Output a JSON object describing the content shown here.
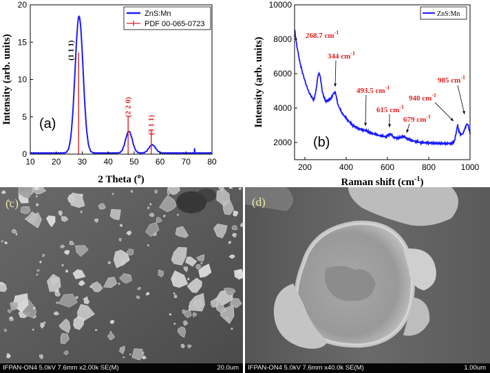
{
  "chart_data": [
    {
      "type": "line",
      "panel_label": "(a)",
      "xlabel": "2 Theta (°)",
      "xlabel_main": "2 Theta (",
      "xlabel_sup": "o",
      "xlabel_end": ")",
      "ylabel": "Intensity (arb. units)",
      "xlim": [
        10,
        80
      ],
      "ylim": [
        0,
        20
      ],
      "xticks": [
        10,
        20,
        30,
        40,
        50,
        60,
        70,
        80
      ],
      "yticks": [
        0,
        5,
        10,
        15,
        20
      ],
      "legend": {
        "position": "top-right",
        "entries": [
          "ZnS:Mn",
          "PDF 00-065-0723"
        ]
      },
      "series": [
        {
          "name": "ZnS:Mn",
          "color": "#1a1aff",
          "peaks": [
            {
              "center": 28.8,
              "height": 18.3,
              "width": 1.55
            },
            {
              "center": 48.0,
              "height": 2.9,
              "width": 1.3
            },
            {
              "center": 57.0,
              "height": 1.1,
              "width": 1.3
            }
          ],
          "baseline": 0.15,
          "spikes": [
            {
              "x": 73.3,
              "height": 0.6
            }
          ]
        },
        {
          "name": "PDF 00-065-0723",
          "color": "#e02020",
          "sticks": [
            {
              "x": 28.6,
              "height": 13.6
            },
            {
              "x": 47.7,
              "height": 5.0
            },
            {
              "x": 56.6,
              "height": 3.3
            }
          ]
        }
      ],
      "annotations": [
        {
          "text": "(1 1 1)",
          "x": 26.6,
          "y": 13.9
        },
        {
          "text": "(2 2 0)",
          "x": 48.6,
          "y": 6.3
        },
        {
          "text": "(3 1 1)",
          "x": 57.4,
          "y": 3.9
        }
      ]
    },
    {
      "type": "line",
      "panel_label": "(b)",
      "xlabel": "Raman shift (cm⁻¹)",
      "xlabel_main": "Raman shift (cm",
      "xlabel_sup": "-1",
      "xlabel_end": ")",
      "ylabel": "Intensity (arb. units)",
      "xlim": [
        150,
        1000
      ],
      "ylim": [
        1000,
        10000
      ],
      "xticks": [
        200,
        400,
        600,
        800,
        1000
      ],
      "yticks": [
        2000,
        4000,
        6000,
        8000,
        10000
      ],
      "legend": {
        "position": "top-right",
        "entries": [
          "ZnS:Mn"
        ]
      },
      "series": [
        {
          "name": "ZnS:Mn",
          "color": "#1a1aff",
          "points": [
            [
              150,
              8600
            ],
            [
              160,
              7700
            ],
            [
              175,
              6700
            ],
            [
              190,
              6000
            ],
            [
              205,
              5400
            ],
            [
              220,
              4900
            ],
            [
              235,
              4600
            ],
            [
              245,
              4500
            ],
            [
              255,
              5100
            ],
            [
              262,
              5800
            ],
            [
              268.7,
              6050
            ],
            [
              275,
              5800
            ],
            [
              285,
              4900
            ],
            [
              300,
              4400
            ],
            [
              315,
              4450
            ],
            [
              330,
              4600
            ],
            [
              338,
              4850
            ],
            [
              344,
              4900
            ],
            [
              350,
              4800
            ],
            [
              360,
              4200
            ],
            [
              380,
              3700
            ],
            [
              400,
              3400
            ],
            [
              430,
              3000
            ],
            [
              460,
              2800
            ],
            [
              493.5,
              2700
            ],
            [
              520,
              2550
            ],
            [
              560,
              2400
            ],
            [
              590,
              2330
            ],
            [
              615,
              2500
            ],
            [
              630,
              2300
            ],
            [
              650,
              2250
            ],
            [
              665,
              2300
            ],
            [
              679,
              2350
            ],
            [
              695,
              2220
            ],
            [
              720,
              2100
            ],
            [
              760,
              2000
            ],
            [
              800,
              1980
            ],
            [
              840,
              1950
            ],
            [
              880,
              1930
            ],
            [
              910,
              1950
            ],
            [
              925,
              2100
            ],
            [
              935,
              2700
            ],
            [
              940,
              3000
            ],
            [
              945,
              2700
            ],
            [
              955,
              2450
            ],
            [
              965,
              2500
            ],
            [
              975,
              2800
            ],
            [
              985,
              3100
            ],
            [
              992,
              2950
            ],
            [
              1000,
              2500
            ]
          ]
        }
      ],
      "annotations": [
        {
          "text": "268.7 cm",
          "sup": "-1",
          "x": 268.7,
          "y": 6050
        },
        {
          "text": "344 cm",
          "sup": "-1",
          "x": 344,
          "y": 4900
        },
        {
          "text": "493.5 cm",
          "sup": "-1",
          "x": 493.5,
          "y": 2700
        },
        {
          "text": "615 cm",
          "sup": "-1",
          "x": 615,
          "y": 2500
        },
        {
          "text": "679 cm",
          "sup": "-1",
          "x": 679,
          "y": 2350
        },
        {
          "text": "940 cm",
          "sup": "-1",
          "x": 940,
          "y": 3000
        },
        {
          "text": "985 cm",
          "sup": "-1",
          "x": 985,
          "y": 3100
        }
      ]
    }
  ],
  "sem_images": [
    {
      "label": "(c)",
      "info": "IFPAN-ON4 5.0kV 7.6mm x2.00k SE(M)",
      "scale": "20.0um"
    },
    {
      "label": "(d)",
      "info": "IFPAN-ON4 5.0kV 7.6mm x40.0k SE(M)",
      "scale": "1.00um"
    }
  ]
}
